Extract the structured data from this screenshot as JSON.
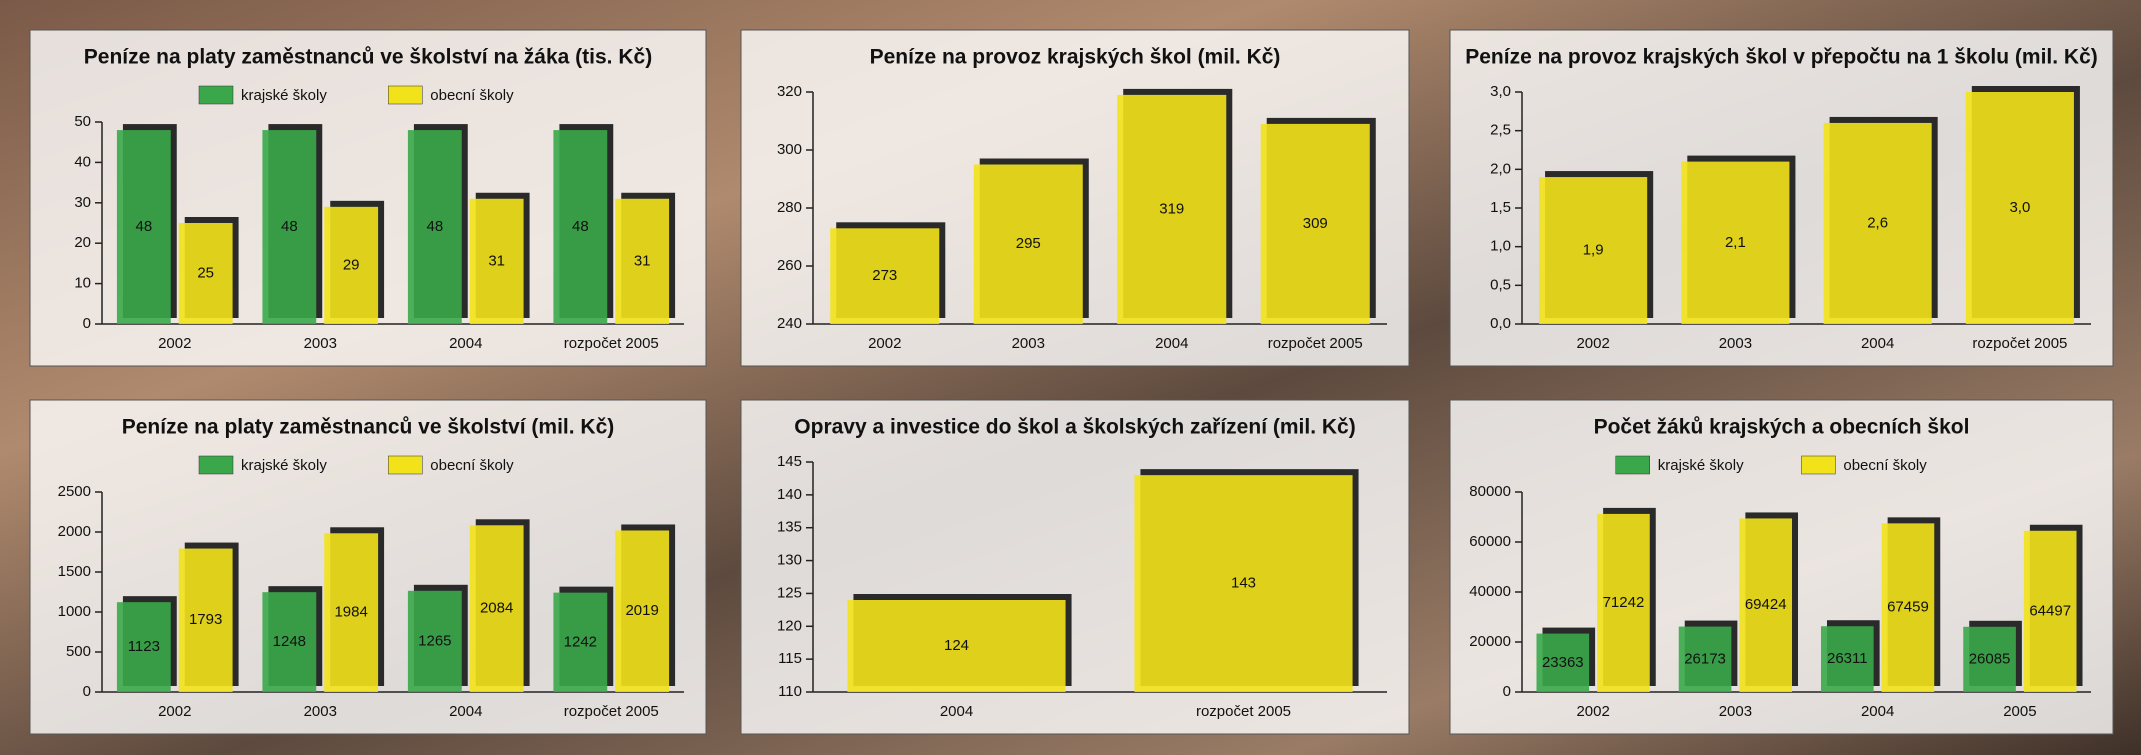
{
  "chart_data": [
    {
      "type": "bar",
      "title": "Peníze na platy zaměstnanců ve školství na žáka (tis. Kč)",
      "categories": [
        "2002",
        "2003",
        "2004",
        "rozpočet 2005"
      ],
      "series": [
        {
          "name": "krajské školy",
          "color": "#3aa84a",
          "values": [
            48,
            48,
            48,
            48
          ]
        },
        {
          "name": "obecní školy",
          "color": "#f2e21a",
          "values": [
            25,
            29,
            31,
            31
          ]
        }
      ],
      "ylim": [
        0,
        50
      ],
      "yticks": [
        0,
        10,
        20,
        30,
        40,
        50
      ]
    },
    {
      "type": "bar",
      "title": "Peníze na provoz krajských škol (mil. Kč)",
      "categories": [
        "2002",
        "2003",
        "2004",
        "rozpočet 2005"
      ],
      "values": [
        273,
        295,
        319,
        309
      ],
      "color": "#f2e21a",
      "ylim": [
        240,
        320
      ],
      "yticks": [
        240,
        260,
        280,
        300,
        320
      ]
    },
    {
      "type": "bar",
      "title": "Peníze na provoz krajských škol v přepočtu na 1 školu (mil. Kč)",
      "categories": [
        "2002",
        "2003",
        "2004",
        "rozpočet 2005"
      ],
      "values": [
        1.9,
        2.1,
        2.6,
        3.0
      ],
      "value_labels": [
        "1,9",
        "2,1",
        "2,6",
        "3,0"
      ],
      "color": "#f2e21a",
      "ylim": [
        0,
        3.0
      ],
      "yticks": [
        {
          "value": 0,
          "label": "0,0"
        },
        {
          "value": 0.5,
          "label": "0,5"
        },
        {
          "value": 1.0,
          "label": "1,0"
        },
        {
          "value": 1.5,
          "label": "1,5"
        },
        {
          "value": 2.0,
          "label": "2,0"
        },
        {
          "value": 2.5,
          "label": "2,5"
        },
        {
          "value": 3.0,
          "label": "3,0"
        }
      ]
    },
    {
      "type": "bar",
      "title": "Peníze na platy zaměstnanců ve školství (mil. Kč)",
      "categories": [
        "2002",
        "2003",
        "2004",
        "rozpočet 2005"
      ],
      "series": [
        {
          "name": "krajské školy",
          "color": "#3aa84a",
          "values": [
            1123,
            1248,
            1265,
            1242
          ]
        },
        {
          "name": "obecní školy",
          "color": "#f2e21a",
          "values": [
            1793,
            1984,
            2084,
            2019
          ]
        }
      ],
      "ylim": [
        0,
        2500
      ],
      "yticks": [
        0,
        500,
        1000,
        1500,
        2000,
        2500
      ]
    },
    {
      "type": "bar",
      "title": "Opravy a investice do škol a školských zařízení (mil. Kč)",
      "categories": [
        "2004",
        "rozpočet 2005"
      ],
      "values": [
        124,
        143
      ],
      "color": "#f2e21a",
      "ylim": [
        110,
        145
      ],
      "yticks": [
        110,
        115,
        120,
        125,
        130,
        135,
        140,
        145
      ]
    },
    {
      "type": "bar",
      "title": "Počet žáků krajských a obecních škol",
      "categories": [
        "2002",
        "2003",
        "2004",
        "2005"
      ],
      "series": [
        {
          "name": "krajské školy",
          "color": "#3aa84a",
          "values": [
            23363,
            26173,
            26311,
            26085
          ]
        },
        {
          "name": "obecní školy",
          "color": "#f2e21a",
          "values": [
            71242,
            69424,
            67459,
            64497
          ]
        }
      ],
      "ylim": [
        0,
        80000
      ],
      "yticks": [
        0,
        20000,
        40000,
        60000,
        80000
      ]
    }
  ]
}
